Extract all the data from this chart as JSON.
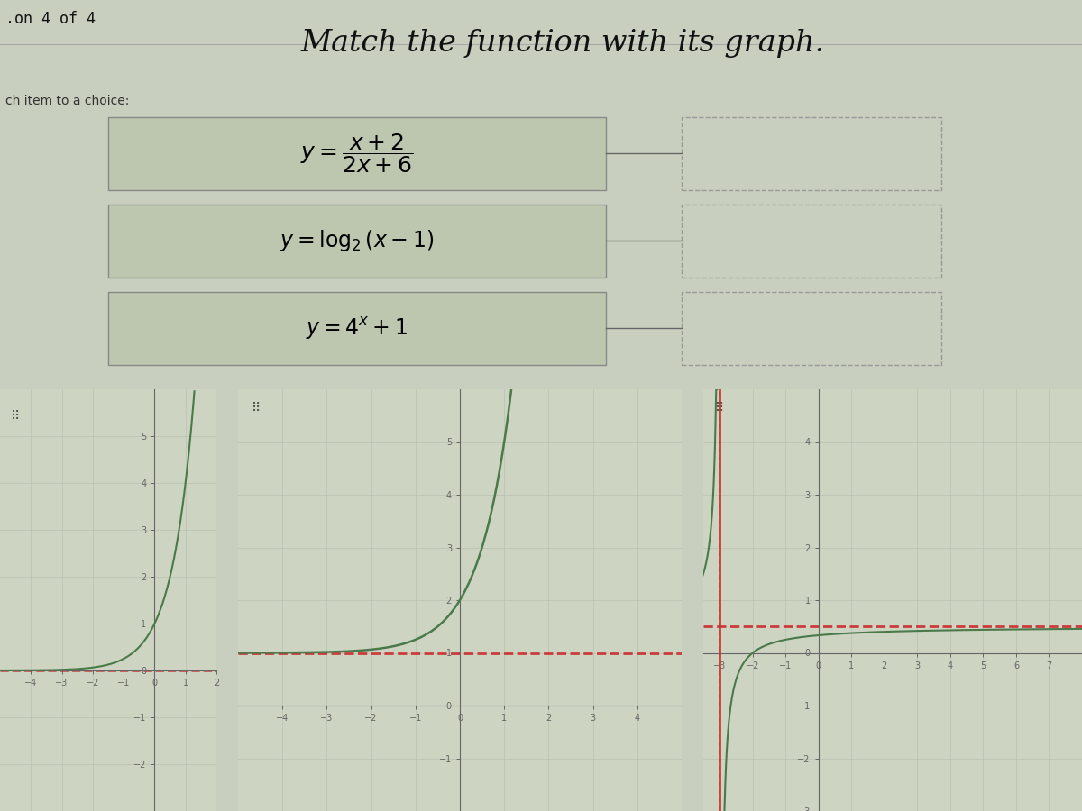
{
  "title": "Match the function with its graph.",
  "subtitle": "ch item to a choice:",
  "header": ".on 4 of 4",
  "bg_color": "#c8cfbe",
  "box_bg": "#bdc7b0",
  "box_edge": "#888888",
  "ans_edge": "#999999",
  "curve_color": "#4a7a4a",
  "asymptote_color": "#cc3333",
  "grid_color": "#b8c0b0",
  "axis_color": "#666666",
  "graph_bg": "#cdd4c2",
  "graph_border": "#aaaaaa",
  "dot_grid_color": "#555555"
}
